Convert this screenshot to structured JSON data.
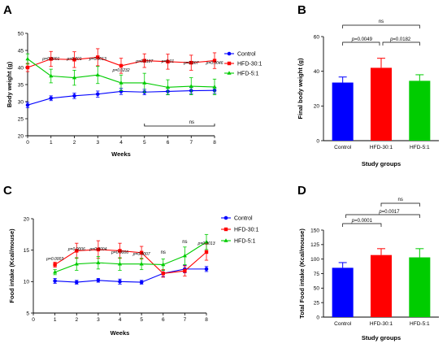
{
  "colors": {
    "control": "#0000ff",
    "hfd30": "#ff0000",
    "hfd5": "#00cc00"
  },
  "chart_data": [
    {
      "panel": "A",
      "type": "line",
      "xlabel": "Weeks",
      "ylabel": "Body weight (g)",
      "x": [
        0,
        1,
        2,
        3,
        4,
        5,
        6,
        7,
        8
      ],
      "xticks": [
        "0",
        "1",
        "2",
        "3",
        "4",
        "5",
        "6",
        "7",
        "8"
      ],
      "ylim": [
        20,
        50
      ],
      "yticks": [
        "20",
        "25",
        "30",
        "35",
        "40",
        "45",
        "50"
      ],
      "series": [
        {
          "name": "Control",
          "color": "#0000ff",
          "values": [
            29,
            31,
            31.7,
            32.2,
            33,
            32.8,
            33,
            33.2,
            33.3
          ],
          "err": [
            0.8,
            0.7,
            0.8,
            0.9,
            0.9,
            0.8,
            0.9,
            0.9,
            0.9
          ]
        },
        {
          "name": "HFD-30:1",
          "color": "#ff0000",
          "values": [
            40,
            42.5,
            42.3,
            43,
            40.5,
            42,
            41.7,
            41.4,
            42
          ],
          "err": [
            1.2,
            2.2,
            2.3,
            2.5,
            2.2,
            2,
            2.2,
            2.2,
            2.3
          ]
        },
        {
          "name": "HFD-5:1",
          "color": "#00cc00",
          "values": [
            42.5,
            37.5,
            37,
            37.8,
            35.5,
            35.5,
            34.2,
            34.5,
            34.3
          ],
          "err": [
            1.5,
            2,
            2.2,
            2.5,
            2.3,
            2.8,
            2.2,
            2.5,
            2.3
          ]
        }
      ],
      "annotations": [
        "p=0.0001",
        "p=0.001",
        "p=0.0013",
        "p=0.0232",
        "p=0.0187",
        "p=0.01",
        "p=0.007",
        "p=0.0046"
      ],
      "bracket_label": "ns"
    },
    {
      "panel": "B",
      "type": "bar",
      "xlabel": "Study groups",
      "ylabel": "Final body weight (g)",
      "categories": [
        "Control",
        "HFD-30:1",
        "HFD-5:1"
      ],
      "values": [
        33.5,
        42,
        34.5
      ],
      "err": [
        3.2,
        5.5,
        3.5
      ],
      "colors": [
        "#0000ff",
        "#ff0000",
        "#00cc00"
      ],
      "ylim": [
        0,
        60
      ],
      "yticks": [
        "0",
        "20",
        "40",
        "60"
      ],
      "brackets": [
        {
          "text": "ns",
          "pval": ""
        },
        {
          "text": "p=",
          "pval": "0.0049"
        },
        {
          "text": "p=",
          "pval": "0.0182"
        }
      ]
    },
    {
      "panel": "C",
      "type": "line",
      "xlabel": "Weeks",
      "ylabel": "Food intake (Kcal/mouse)",
      "x": [
        1,
        2,
        3,
        4,
        5,
        6,
        7,
        8
      ],
      "xticks": [
        "0",
        "1",
        "2",
        "3",
        "4",
        "5",
        "6",
        "7",
        "8"
      ],
      "ylim": [
        5,
        20
      ],
      "yticks": [
        "5",
        "10",
        "15",
        "20"
      ],
      "series": [
        {
          "name": "Control",
          "color": "#0000ff",
          "values": [
            10.1,
            9.9,
            10.2,
            10,
            9.9,
            11.3,
            12,
            12
          ],
          "err": [
            0.4,
            0.3,
            0.3,
            0.4,
            0.3,
            0.5,
            0.6,
            0.4
          ]
        },
        {
          "name": "HFD-30:1",
          "color": "#ff0000",
          "values": [
            12.7,
            14.9,
            15.1,
            14.9,
            14.6,
            11.3,
            11.7,
            14.7
          ],
          "err": [
            0.4,
            1.2,
            1.4,
            1.2,
            1,
            0.6,
            0.8,
            1.3
          ]
        },
        {
          "name": "HFD-5:1",
          "color": "#00cc00",
          "values": [
            11.5,
            12.8,
            13,
            12.8,
            12.8,
            12.7,
            14.1,
            16.3
          ],
          "err": [
            0.4,
            1,
            1,
            1,
            0.9,
            0.9,
            1.4,
            1.2
          ]
        }
      ],
      "annotations": [
        "p=0.0003",
        "p=0.0006",
        "p=0.0004",
        "p=0.0006",
        "p=0.0007",
        "ns",
        "ns",
        "p=0.0013"
      ]
    },
    {
      "panel": "D",
      "type": "bar",
      "xlabel": "Study groups",
      "ylabel": "Total Food intake (Kcal/mouse)",
      "categories": [
        "Control",
        "HFD-30:1",
        "HFD-5:1"
      ],
      "values": [
        85,
        107,
        103
      ],
      "err": [
        9,
        11,
        15
      ],
      "colors": [
        "#0000ff",
        "#ff0000",
        "#00cc00"
      ],
      "ylim": [
        0,
        150
      ],
      "yticks": [
        "0",
        "25",
        "50",
        "75",
        "100",
        "125",
        "150"
      ],
      "brackets": [
        {
          "text": "p=",
          "pval": "0.0001"
        },
        {
          "text": "p=",
          "pval": "0.0017"
        },
        {
          "text": "ns",
          "pval": ""
        }
      ]
    }
  ],
  "labels": {
    "a": "A",
    "b": "B",
    "c": "C",
    "d": "D"
  }
}
